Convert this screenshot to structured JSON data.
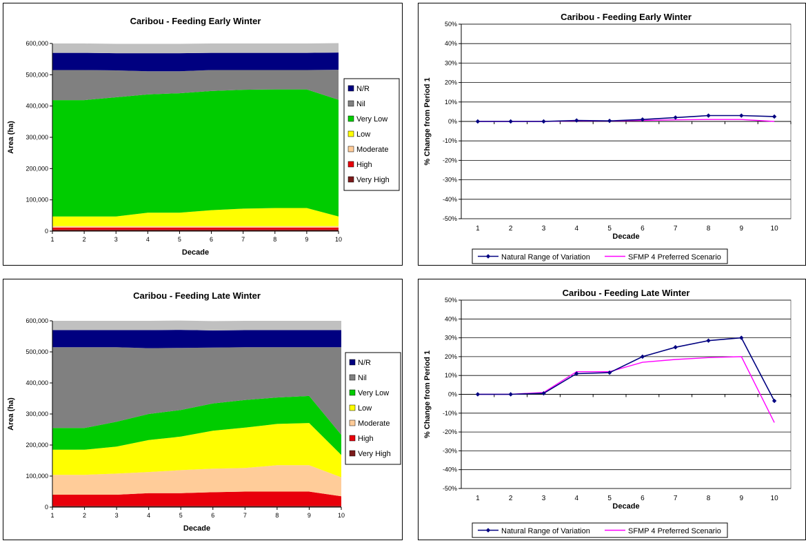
{
  "chart_data": [
    {
      "type": "area",
      "title": "Caribou - Feeding Early Winter",
      "xlabel": "Decade",
      "ylabel": "Area (ha)",
      "x": [
        1,
        2,
        3,
        4,
        5,
        6,
        7,
        8,
        9,
        10
      ],
      "ylim": [
        0,
        600000
      ],
      "yticks": [
        "0",
        "100,000",
        "200,000",
        "300,000",
        "400,000",
        "500,000",
        "600,000"
      ],
      "stacked": true,
      "legend_position": "right",
      "series": [
        {
          "name": "Very High",
          "color": "#7a1a1a",
          "values": [
            5000,
            5000,
            5000,
            5000,
            5000,
            5000,
            5000,
            5000,
            5000,
            5000
          ]
        },
        {
          "name": "High",
          "color": "#e8000b",
          "values": [
            6000,
            6000,
            6000,
            6000,
            6000,
            6000,
            6000,
            6000,
            6000,
            6000
          ]
        },
        {
          "name": "Moderate",
          "color": "#ffcc99",
          "values": [
            5000,
            5000,
            5000,
            5000,
            5000,
            5000,
            5000,
            5000,
            5000,
            5000
          ]
        },
        {
          "name": "Low",
          "color": "#ffff00",
          "values": [
            31000,
            31000,
            31000,
            43000,
            43000,
            51000,
            56000,
            58000,
            58000,
            31000
          ]
        },
        {
          "name": "Very Low",
          "color": "#00cc00",
          "values": [
            372000,
            372000,
            381000,
            378000,
            382000,
            381000,
            380000,
            379000,
            379000,
            373000
          ]
        },
        {
          "name": "Nil",
          "color": "#808080",
          "values": [
            96000,
            96000,
            86000,
            74000,
            70000,
            67000,
            63000,
            62000,
            62000,
            96000
          ]
        },
        {
          "name": "N/R",
          "color": "#000080",
          "values": [
            55000,
            55000,
            55000,
            58000,
            58000,
            55000,
            55000,
            55000,
            55000,
            55000
          ]
        },
        {
          "name": "",
          "color": "#c0c0c0",
          "values": [
            30000,
            30000,
            30000,
            30000,
            30000,
            30000,
            30000,
            30000,
            30000,
            30000
          ]
        }
      ]
    },
    {
      "type": "line",
      "title": "Caribou - Feeding Early Winter",
      "xlabel": "Decade",
      "ylabel": "% Change from Period 1",
      "x": [
        1,
        2,
        3,
        4,
        5,
        6,
        7,
        8,
        9,
        10
      ],
      "ylim": [
        -50,
        50
      ],
      "yticks": [
        "-50%",
        "-40%",
        "-30%",
        "-20%",
        "-10%",
        "0%",
        "10%",
        "20%",
        "30%",
        "40%",
        "50%"
      ],
      "legend_position": "bottom",
      "series": [
        {
          "name": "Natural Range of Variation",
          "color": "#000080",
          "marker": "diamond",
          "values": [
            0,
            0,
            0,
            0.5,
            0.3,
            1,
            2,
            3,
            3,
            2.5
          ]
        },
        {
          "name": "SFMP 4 Preferred Scenario",
          "color": "#ff00ff",
          "marker": "none",
          "values": [
            0,
            0,
            0,
            0.3,
            0.2,
            0.5,
            0.8,
            1,
            1,
            0
          ]
        }
      ]
    },
    {
      "type": "area",
      "title": "Caribou - Feeding Late Winter",
      "xlabel": "Decade",
      "ylabel": "Area (ha)",
      "x": [
        1,
        2,
        3,
        4,
        5,
        6,
        7,
        8,
        9,
        10
      ],
      "ylim": [
        0,
        600000
      ],
      "yticks": [
        "0",
        "100,000",
        "200,000",
        "300,000",
        "400,000",
        "500,000",
        "600,000"
      ],
      "stacked": true,
      "legend_position": "right",
      "series": [
        {
          "name": "Very High",
          "color": "#7a1a1a",
          "values": [
            4000,
            4000,
            4000,
            4000,
            4000,
            4000,
            4000,
            4000,
            4000,
            4000
          ]
        },
        {
          "name": "High",
          "color": "#e8000b",
          "values": [
            36000,
            36000,
            36000,
            41000,
            41000,
            44000,
            46000,
            46000,
            46000,
            31000
          ]
        },
        {
          "name": "Moderate",
          "color": "#ffcc99",
          "values": [
            64000,
            64000,
            68000,
            68000,
            74000,
            76000,
            76000,
            85000,
            85000,
            61000
          ]
        },
        {
          "name": "Low",
          "color": "#ffff00",
          "values": [
            81000,
            81000,
            87000,
            103000,
            108000,
            122000,
            130000,
            133000,
            136000,
            72000
          ]
        },
        {
          "name": "Very Low",
          "color": "#00cc00",
          "values": [
            70000,
            70000,
            80000,
            84000,
            86000,
            88000,
            89000,
            85000,
            87000,
            65000
          ]
        },
        {
          "name": "Nil",
          "color": "#808080",
          "values": [
            260000,
            260000,
            240000,
            212000,
            200000,
            180000,
            170000,
            162000,
            157000,
            282000
          ]
        },
        {
          "name": "N/R",
          "color": "#000080",
          "values": [
            55000,
            55000,
            55000,
            58000,
            58000,
            55000,
            55000,
            55000,
            55000,
            55000
          ]
        },
        {
          "name": "",
          "color": "#c0c0c0",
          "values": [
            30000,
            30000,
            30000,
            30000,
            30000,
            30000,
            30000,
            30000,
            30000,
            30000
          ]
        }
      ]
    },
    {
      "type": "line",
      "title": "Caribou - Feeding Late Winter",
      "xlabel": "Decade",
      "ylabel": "% Change from Period 1",
      "x": [
        1,
        2,
        3,
        4,
        5,
        6,
        7,
        8,
        9,
        10
      ],
      "ylim": [
        -50,
        50
      ],
      "yticks": [
        "-50%",
        "-40%",
        "-30%",
        "-20%",
        "-10%",
        "0%",
        "10%",
        "20%",
        "30%",
        "40%",
        "50%"
      ],
      "legend_position": "bottom",
      "series": [
        {
          "name": "Natural Range of Variation",
          "color": "#000080",
          "marker": "diamond",
          "values": [
            0,
            0,
            0.5,
            11,
            11.5,
            20,
            25,
            28.5,
            30,
            -3.5
          ]
        },
        {
          "name": "SFMP 4 Preferred Scenario",
          "color": "#ff00ff",
          "marker": "none",
          "values": [
            0,
            0,
            1,
            12,
            12,
            17,
            18.5,
            19.5,
            20,
            -15
          ]
        }
      ]
    }
  ]
}
